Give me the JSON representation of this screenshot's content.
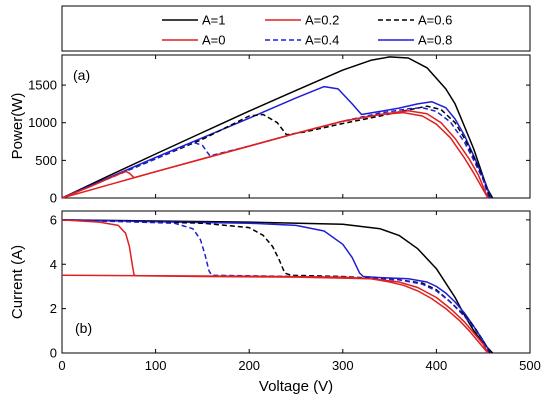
{
  "chart_data": [
    {
      "type": "line",
      "panel_label": "(a)",
      "xlabel": "",
      "ylabel": "Power(W)",
      "xlim": [
        0,
        500
      ],
      "ylim": [
        0,
        1900
      ],
      "xticks": [
        0,
        100,
        200,
        300,
        400,
        500
      ],
      "yticks": [
        0,
        500,
        1000,
        1500
      ],
      "series": [
        {
          "name": "A=1",
          "color": "#000000",
          "dash": "solid",
          "x": [
            0,
            50,
            100,
            150,
            200,
            250,
            300,
            330,
            350,
            370,
            390,
            410,
            420,
            430,
            440,
            450,
            455,
            460
          ],
          "y": [
            0,
            295,
            585,
            870,
            1155,
            1430,
            1700,
            1830,
            1875,
            1860,
            1730,
            1450,
            1250,
            950,
            650,
            280,
            110,
            0
          ]
        },
        {
          "name": "A=0.8",
          "color": "#1f1fd6",
          "dash": "solid",
          "x": [
            0,
            50,
            100,
            150,
            200,
            250,
            280,
            295,
            310,
            320,
            340,
            360,
            380,
            395,
            410,
            420,
            430,
            440,
            450,
            458
          ],
          "y": [
            0,
            270,
            540,
            800,
            1060,
            1330,
            1480,
            1450,
            1250,
            1110,
            1150,
            1195,
            1250,
            1280,
            1200,
            1050,
            830,
            560,
            270,
            0
          ]
        },
        {
          "name": "A=0.6",
          "color": "#000000",
          "dash": "dashed",
          "x": [
            0,
            50,
            100,
            150,
            200,
            215,
            230,
            240,
            260,
            300,
            340,
            370,
            390,
            405,
            420,
            430,
            440,
            450,
            457
          ],
          "y": [
            0,
            260,
            520,
            780,
            1090,
            1110,
            1000,
            840,
            880,
            990,
            1090,
            1170,
            1220,
            1175,
            1000,
            790,
            540,
            260,
            0
          ]
        },
        {
          "name": "A=0.4",
          "color": "#1f1fd6",
          "dash": "dashed",
          "x": [
            0,
            50,
            100,
            140,
            150,
            158,
            200,
            250,
            300,
            340,
            370,
            385,
            400,
            415,
            430,
            440,
            450,
            456
          ],
          "y": [
            0,
            260,
            520,
            740,
            700,
            560,
            690,
            860,
            1020,
            1130,
            1185,
            1200,
            1150,
            1010,
            740,
            500,
            240,
            0
          ]
        },
        {
          "name": "A=0.2",
          "color": "#e02020",
          "dash": "solid",
          "x": [
            0,
            30,
            50,
            68,
            72,
            77,
            100,
            150,
            200,
            250,
            300,
            340,
            370,
            390,
            405,
            420,
            435,
            445,
            455
          ],
          "y": [
            0,
            150,
            260,
            355,
            330,
            270,
            350,
            520,
            690,
            860,
            1020,
            1110,
            1160,
            1120,
            1000,
            790,
            520,
            300,
            0
          ]
        },
        {
          "name": "A=0",
          "color": "#e02020",
          "dash": "solid",
          "x": [
            0,
            50,
            100,
            150,
            200,
            250,
            300,
            340,
            365,
            385,
            400,
            415,
            430,
            440,
            450,
            455
          ],
          "y": [
            0,
            175,
            350,
            520,
            690,
            860,
            1020,
            1110,
            1135,
            1090,
            980,
            800,
            530,
            330,
            110,
            0
          ]
        }
      ]
    },
    {
      "type": "line",
      "panel_label": "(b)",
      "xlabel": "Voltage (V)",
      "ylabel": "Current (A)",
      "xlim": [
        0,
        500
      ],
      "ylim": [
        0,
        6.4
      ],
      "xticks": [
        0,
        100,
        200,
        300,
        400,
        500
      ],
      "yticks": [
        0,
        2,
        4,
        6
      ],
      "series": [
        {
          "name": "A=1",
          "color": "#000000",
          "dash": "solid",
          "x": [
            0,
            100,
            200,
            300,
            340,
            360,
            380,
            400,
            420,
            430,
            440,
            450,
            460
          ],
          "y": [
            6.0,
            5.95,
            5.9,
            5.8,
            5.6,
            5.3,
            4.7,
            3.8,
            2.5,
            1.7,
            1.0,
            0.45,
            0
          ]
        },
        {
          "name": "A=0.8",
          "color": "#1f1fd6",
          "dash": "solid",
          "x": [
            0,
            100,
            200,
            250,
            280,
            300,
            310,
            318,
            322,
            340,
            370,
            390,
            400,
            410,
            420,
            430,
            440,
            450,
            458
          ],
          "y": [
            6.0,
            5.92,
            5.85,
            5.75,
            5.5,
            4.9,
            4.3,
            3.6,
            3.45,
            3.4,
            3.35,
            3.2,
            3.0,
            2.7,
            2.3,
            1.8,
            1.2,
            0.55,
            0
          ]
        },
        {
          "name": "A=0.6",
          "color": "#000000",
          "dash": "dashed",
          "x": [
            0,
            100,
            150,
            200,
            215,
            225,
            232,
            238,
            245,
            300,
            360,
            385,
            400,
            415,
            430,
            440,
            450,
            457
          ],
          "y": [
            6.0,
            5.9,
            5.85,
            5.65,
            5.3,
            4.8,
            4.2,
            3.6,
            3.5,
            3.45,
            3.3,
            3.15,
            2.85,
            2.3,
            1.7,
            1.2,
            0.55,
            0
          ]
        },
        {
          "name": "A=0.4",
          "color": "#1f1fd6",
          "dash": "dashed",
          "x": [
            0,
            80,
            120,
            140,
            148,
            153,
            157,
            160,
            200,
            300,
            360,
            385,
            400,
            415,
            430,
            440,
            450,
            456
          ],
          "y": [
            6.0,
            5.9,
            5.85,
            5.6,
            5.1,
            4.4,
            3.7,
            3.5,
            3.48,
            3.42,
            3.3,
            3.1,
            2.8,
            2.3,
            1.65,
            1.15,
            0.5,
            0
          ]
        },
        {
          "name": "A=0.2",
          "color": "#e02020",
          "dash": "solid",
          "x": [
            0,
            40,
            60,
            68,
            72,
            75,
            77,
            80,
            150,
            250,
            330,
            360,
            380,
            400,
            415,
            430,
            440,
            450,
            455
          ],
          "y": [
            6.0,
            5.9,
            5.75,
            5.4,
            4.8,
            4.0,
            3.5,
            3.48,
            3.45,
            3.42,
            3.35,
            3.2,
            2.95,
            2.5,
            2.0,
            1.4,
            0.9,
            0.4,
            0
          ]
        },
        {
          "name": "A=0",
          "color": "#e02020",
          "dash": "solid",
          "x": [
            0,
            100,
            200,
            300,
            330,
            350,
            365,
            380,
            395,
            410,
            425,
            435,
            445,
            455
          ],
          "y": [
            3.5,
            3.48,
            3.46,
            3.42,
            3.35,
            3.2,
            3.05,
            2.8,
            2.45,
            2.0,
            1.45,
            1.0,
            0.5,
            0
          ]
        }
      ]
    }
  ],
  "legend": {
    "row1": [
      {
        "label": "A=1",
        "color": "#000000",
        "dash": "solid"
      },
      {
        "label": "A=0.2",
        "color": "#e02020",
        "dash": "solid"
      },
      {
        "label": "A=0.6",
        "color": "#000000",
        "dash": "dashed"
      }
    ],
    "row2": [
      {
        "label": "A=0",
        "color": "#e02020",
        "dash": "solid"
      },
      {
        "label": "A=0.4",
        "color": "#1f1fd6",
        "dash": "dashed"
      },
      {
        "label": "A=0.8",
        "color": "#1f1fd6",
        "dash": "solid"
      }
    ]
  }
}
